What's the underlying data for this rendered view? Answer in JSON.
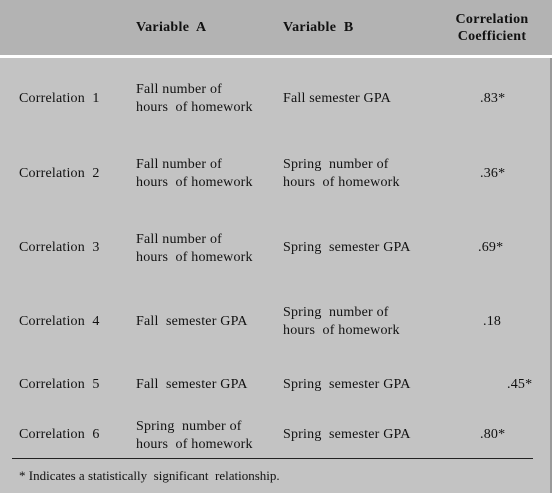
{
  "headers": {
    "variable_a": "Variable  A",
    "variable_b": "Variable  B",
    "coefficient": "Correlation Coefficient"
  },
  "rows": [
    {
      "label": "Correlation  1",
      "a": "Fall number of\nhours  of homework",
      "b": "Fall semester GPA",
      "coef": ".83*"
    },
    {
      "label": "Correlation  2",
      "a": "Fall number of\nhours  of homework",
      "b": "Spring  number of\nhours  of homework",
      "coef": ".36*"
    },
    {
      "label": "Correlation  3",
      "a": "Fall number of\nhours  of homework",
      "b": "Spring  semester GPA",
      "coef": ".69*"
    },
    {
      "label": "Correlation  4",
      "a": "Fall  semester GPA",
      "b": "Spring  number of\nhours  of homework",
      "coef": ".18"
    },
    {
      "label": "Correlation  5",
      "a": "Fall  semester GPA",
      "b": "Spring  semester GPA",
      "coef": ".45*"
    },
    {
      "label": "Correlation  6",
      "a": "Spring  number of\nhours  of homework",
      "b": "Spring  semester GPA",
      "coef": ".80*"
    }
  ],
  "footnote": "* Indicates a statistically  significant  relationship."
}
